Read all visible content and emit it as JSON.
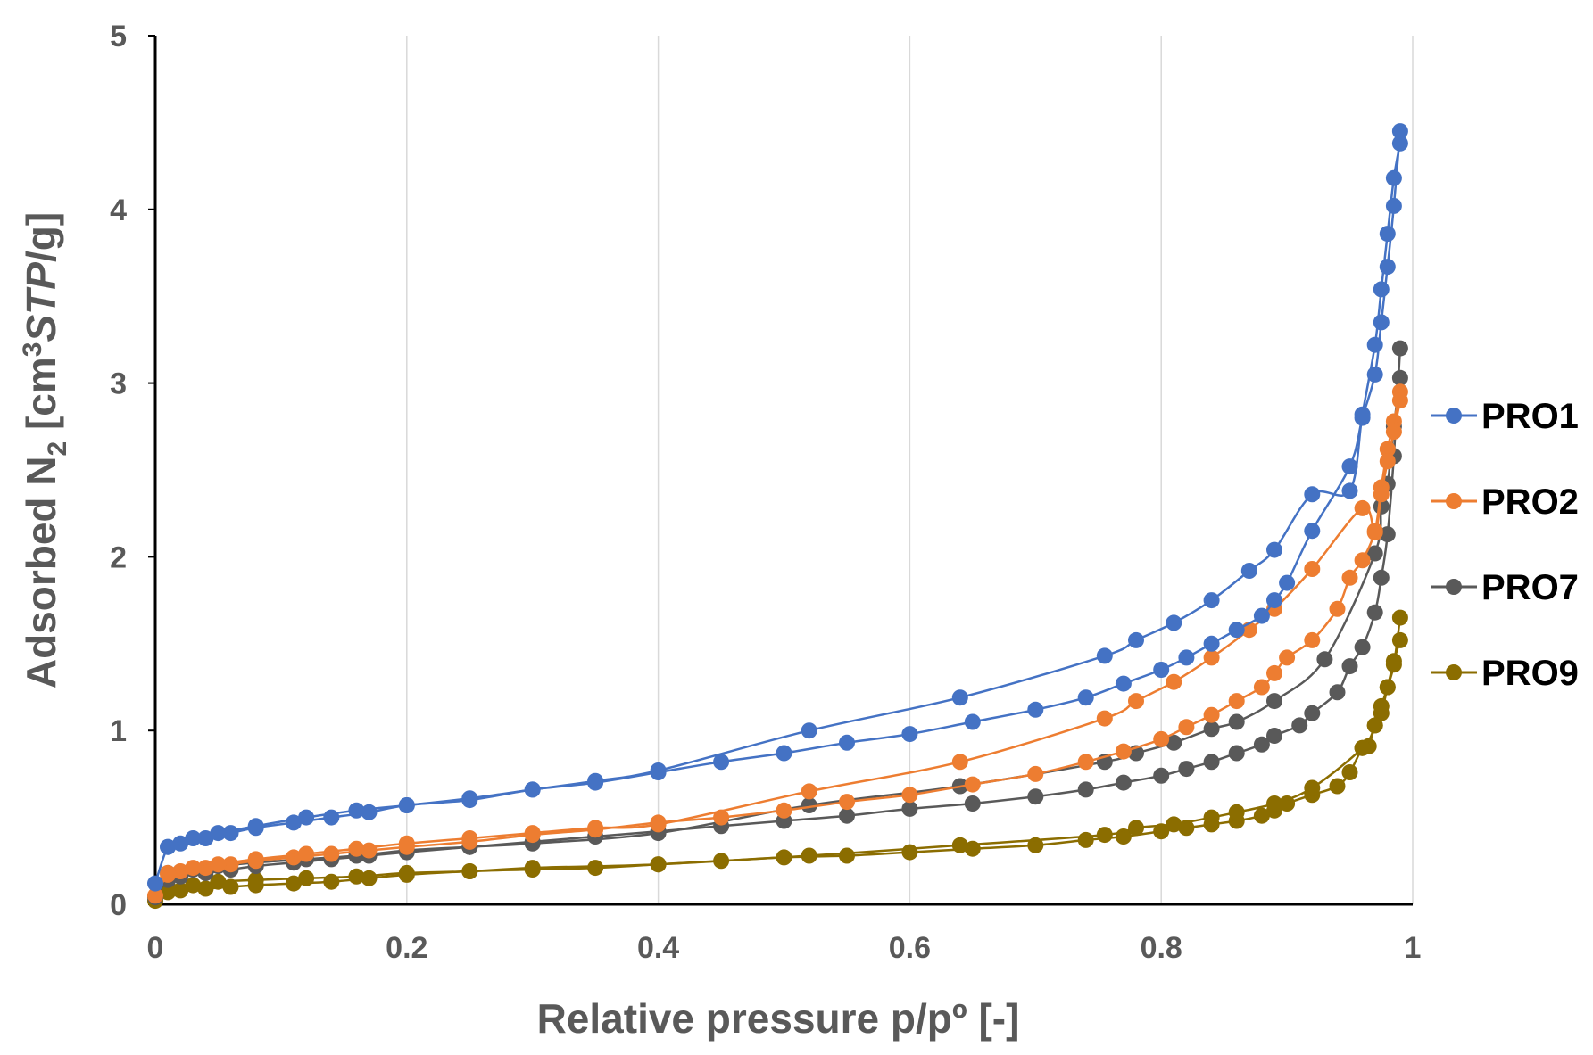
{
  "chart_data": {
    "type": "line",
    "xlabel": "Relative pressure p/pº [-]",
    "ylabel_parts": [
      "Adsorbed N",
      "2",
      " [cm",
      "3",
      "STP",
      "/g]"
    ],
    "xlim": [
      0,
      1
    ],
    "ylim": [
      0,
      5
    ],
    "x_ticks": [
      0,
      0.2,
      0.4,
      0.6,
      0.8,
      1
    ],
    "x_tick_labels": [
      "0",
      "0.2",
      "0.4",
      "0.6",
      "0.8",
      "1"
    ],
    "y_ticks": [
      0,
      1,
      2,
      3,
      4,
      5
    ],
    "y_tick_labels": [
      "0",
      "1",
      "2",
      "3",
      "4",
      "5"
    ],
    "grid": "vertical",
    "legend_position": "right",
    "series": [
      {
        "name": "PRO1",
        "color": "#4472c4",
        "adsorption": {
          "x": [
            0.0,
            0.01,
            0.02,
            0.04,
            0.06,
            0.08,
            0.11,
            0.14,
            0.17,
            0.2,
            0.25,
            0.3,
            0.35,
            0.4,
            0.45,
            0.5,
            0.55,
            0.6,
            0.65,
            0.7,
            0.74,
            0.77,
            0.8,
            0.82,
            0.84,
            0.86,
            0.88,
            0.89,
            0.9,
            0.92,
            0.95,
            0.96,
            0.97,
            0.975,
            0.98,
            0.985,
            0.99
          ],
          "y": [
            0.12,
            0.33,
            0.35,
            0.38,
            0.41,
            0.44,
            0.47,
            0.5,
            0.53,
            0.57,
            0.6,
            0.66,
            0.7,
            0.76,
            0.82,
            0.87,
            0.93,
            0.98,
            1.05,
            1.12,
            1.19,
            1.27,
            1.35,
            1.42,
            1.5,
            1.58,
            1.66,
            1.75,
            1.85,
            2.15,
            2.52,
            2.8,
            3.05,
            3.35,
            3.67,
            4.02,
            4.45
          ]
        },
        "desorption": {
          "x": [
            0.99,
            0.985,
            0.98,
            0.975,
            0.97,
            0.96,
            0.95,
            0.92,
            0.89,
            0.87,
            0.84,
            0.81,
            0.78,
            0.755,
            0.64,
            0.52,
            0.4,
            0.35,
            0.3,
            0.25,
            0.2,
            0.16,
            0.12,
            0.08,
            0.05,
            0.03,
            0.01
          ],
          "y": [
            4.38,
            4.18,
            3.86,
            3.54,
            3.22,
            2.82,
            2.38,
            2.36,
            2.04,
            1.92,
            1.75,
            1.62,
            1.52,
            1.43,
            1.19,
            1.0,
            0.77,
            0.71,
            0.66,
            0.61,
            0.57,
            0.54,
            0.5,
            0.45,
            0.41,
            0.38,
            0.33
          ]
        }
      },
      {
        "name": "PRO2",
        "color": "#ed7d31",
        "adsorption": {
          "x": [
            0.0,
            0.01,
            0.02,
            0.04,
            0.06,
            0.08,
            0.11,
            0.14,
            0.17,
            0.2,
            0.25,
            0.3,
            0.35,
            0.4,
            0.45,
            0.5,
            0.55,
            0.6,
            0.65,
            0.7,
            0.74,
            0.77,
            0.8,
            0.82,
            0.84,
            0.86,
            0.88,
            0.89,
            0.9,
            0.92,
            0.94,
            0.95,
            0.96,
            0.97,
            0.975,
            0.98,
            0.985,
            0.99
          ],
          "y": [
            0.05,
            0.17,
            0.19,
            0.21,
            0.23,
            0.25,
            0.27,
            0.29,
            0.31,
            0.33,
            0.36,
            0.4,
            0.43,
            0.47,
            0.5,
            0.54,
            0.59,
            0.63,
            0.69,
            0.75,
            0.82,
            0.88,
            0.95,
            1.02,
            1.09,
            1.17,
            1.25,
            1.33,
            1.42,
            1.52,
            1.7,
            1.88,
            1.98,
            2.15,
            2.4,
            2.62,
            2.78,
            2.95
          ]
        },
        "desorption": {
          "x": [
            0.99,
            0.985,
            0.98,
            0.975,
            0.97,
            0.96,
            0.92,
            0.89,
            0.87,
            0.84,
            0.81,
            0.78,
            0.755,
            0.64,
            0.52,
            0.4,
            0.35,
            0.3,
            0.25,
            0.2,
            0.16,
            0.12,
            0.08,
            0.05,
            0.03,
            0.01
          ],
          "y": [
            2.9,
            2.72,
            2.55,
            2.36,
            2.14,
            2.28,
            1.93,
            1.7,
            1.58,
            1.42,
            1.28,
            1.17,
            1.07,
            0.82,
            0.65,
            0.46,
            0.44,
            0.41,
            0.38,
            0.35,
            0.32,
            0.29,
            0.26,
            0.23,
            0.21,
            0.18
          ]
        }
      },
      {
        "name": "PRO7",
        "color": "#595959",
        "adsorption": {
          "x": [
            0.0,
            0.01,
            0.02,
            0.04,
            0.06,
            0.08,
            0.11,
            0.14,
            0.17,
            0.2,
            0.25,
            0.3,
            0.35,
            0.4,
            0.45,
            0.5,
            0.55,
            0.6,
            0.65,
            0.7,
            0.74,
            0.77,
            0.8,
            0.82,
            0.84,
            0.86,
            0.88,
            0.89,
            0.91,
            0.92,
            0.94,
            0.95,
            0.96,
            0.97,
            0.975,
            0.98,
            0.985,
            0.99
          ],
          "y": [
            0.04,
            0.14,
            0.16,
            0.18,
            0.2,
            0.22,
            0.24,
            0.26,
            0.28,
            0.3,
            0.33,
            0.36,
            0.39,
            0.42,
            0.45,
            0.48,
            0.51,
            0.55,
            0.58,
            0.62,
            0.66,
            0.7,
            0.74,
            0.78,
            0.82,
            0.87,
            0.92,
            0.97,
            1.03,
            1.1,
            1.22,
            1.37,
            1.48,
            1.68,
            1.88,
            2.13,
            2.58,
            3.2
          ]
        },
        "desorption": {
          "x": [
            0.99,
            0.985,
            0.98,
            0.975,
            0.97,
            0.93,
            0.89,
            0.86,
            0.84,
            0.81,
            0.78,
            0.755,
            0.64,
            0.52,
            0.4,
            0.3,
            0.25,
            0.2,
            0.16,
            0.12,
            0.08,
            0.05,
            0.03,
            0.01
          ],
          "y": [
            3.03,
            2.75,
            2.42,
            2.29,
            2.02,
            1.41,
            1.17,
            1.05,
            1.01,
            0.93,
            0.87,
            0.82,
            0.68,
            0.57,
            0.41,
            0.35,
            0.33,
            0.31,
            0.28,
            0.26,
            0.24,
            0.22,
            0.2,
            0.18
          ]
        }
      },
      {
        "name": "PRO9",
        "color": "#8b6d00",
        "adsorption": {
          "x": [
            0.0,
            0.01,
            0.02,
            0.04,
            0.06,
            0.08,
            0.11,
            0.14,
            0.17,
            0.2,
            0.25,
            0.3,
            0.35,
            0.4,
            0.45,
            0.5,
            0.55,
            0.6,
            0.65,
            0.7,
            0.74,
            0.77,
            0.8,
            0.82,
            0.84,
            0.86,
            0.88,
            0.89,
            0.9,
            0.92,
            0.94,
            0.95,
            0.96,
            0.965,
            0.97,
            0.975,
            0.98,
            0.985,
            0.99
          ],
          "y": [
            0.02,
            0.07,
            0.08,
            0.09,
            0.1,
            0.11,
            0.12,
            0.13,
            0.15,
            0.17,
            0.19,
            0.2,
            0.21,
            0.23,
            0.25,
            0.27,
            0.28,
            0.3,
            0.32,
            0.34,
            0.37,
            0.39,
            0.42,
            0.44,
            0.46,
            0.48,
            0.51,
            0.54,
            0.58,
            0.63,
            0.68,
            0.76,
            0.9,
            0.91,
            1.03,
            1.1,
            1.25,
            1.4,
            1.52
          ]
        },
        "desorption": {
          "x": [
            0.99,
            0.985,
            0.98,
            0.975,
            0.97,
            0.96,
            0.92,
            0.89,
            0.86,
            0.84,
            0.81,
            0.78,
            0.755,
            0.64,
            0.52,
            0.4,
            0.3,
            0.25,
            0.2,
            0.16,
            0.12,
            0.08,
            0.05,
            0.03,
            0.01
          ],
          "y": [
            1.65,
            1.38,
            1.25,
            1.14,
            1.03,
            0.9,
            0.67,
            0.58,
            0.53,
            0.5,
            0.46,
            0.44,
            0.4,
            0.34,
            0.28,
            0.23,
            0.21,
            0.19,
            0.18,
            0.16,
            0.15,
            0.14,
            0.13,
            0.11,
            0.1
          ]
        }
      }
    ]
  }
}
